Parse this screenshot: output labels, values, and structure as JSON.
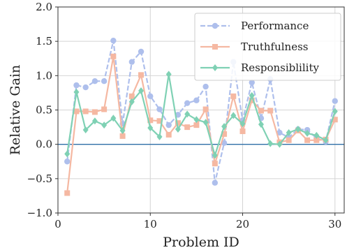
{
  "chart_data": {
    "type": "line",
    "xlabel": "Problem ID",
    "ylabel": "Relative Gain",
    "xlim": [
      0,
      31
    ],
    "ylim": [
      -1.0,
      2.0
    ],
    "xticks": [
      0,
      10,
      20,
      30
    ],
    "xtick_labels": [
      "0",
      "10",
      "20",
      "30"
    ],
    "yticks": [
      -1.0,
      -0.5,
      0.0,
      0.5,
      1.0,
      1.5,
      2.0
    ],
    "ytick_labels": [
      "−1.0",
      "−0.5",
      "0.0",
      "0.5",
      "1.0",
      "1.5",
      "2.0"
    ],
    "grid": true,
    "legend_position": "top-right",
    "reference_line": {
      "y": 0,
      "color": "#2f6fa8"
    },
    "x": [
      1,
      2,
      3,
      4,
      5,
      6,
      7,
      8,
      9,
      10,
      11,
      12,
      13,
      14,
      15,
      16,
      17,
      18,
      19,
      20,
      21,
      22,
      23,
      24,
      25,
      26,
      27,
      28,
      29,
      30
    ],
    "series": [
      {
        "name": "Performance",
        "marker": "circle",
        "color": "#aebfec",
        "linestyle": "dashed",
        "values": [
          -0.25,
          0.86,
          0.83,
          0.92,
          0.92,
          1.51,
          0.3,
          1.2,
          1.35,
          0.7,
          0.51,
          0.28,
          0.43,
          0.6,
          0.64,
          0.84,
          -0.56,
          0.02,
          1.2,
          0.35,
          0.9,
          0.38,
          0.95,
          0.17,
          0.1,
          0.22,
          0.21,
          0.09,
          0.04,
          0.63
        ]
      },
      {
        "name": "Truthfulness",
        "marker": "square",
        "color": "#f5b8a2",
        "linestyle": "solid",
        "values": [
          -0.71,
          0.48,
          0.48,
          0.47,
          0.51,
          1.28,
          0.12,
          0.7,
          1.01,
          0.35,
          0.34,
          0.14,
          0.31,
          0.25,
          0.28,
          0.51,
          -0.28,
          0.15,
          0.7,
          0.19,
          0.64,
          0.49,
          0.49,
          0.03,
          0.06,
          0.2,
          0.06,
          0.06,
          0.07,
          0.36
        ]
      },
      {
        "name": "Responsiblility",
        "marker": "diamond",
        "color": "#7fd1b4",
        "linestyle": "solid",
        "values": [
          -0.14,
          0.76,
          0.21,
          0.34,
          0.28,
          0.38,
          0.2,
          0.62,
          0.78,
          0.24,
          0.11,
          1.02,
          0.22,
          0.44,
          0.36,
          0.32,
          -0.16,
          0.26,
          0.42,
          0.3,
          0.71,
          0.29,
          0.01,
          0.0,
          0.17,
          0.22,
          0.16,
          0.13,
          0.06,
          0.48
        ]
      }
    ]
  }
}
